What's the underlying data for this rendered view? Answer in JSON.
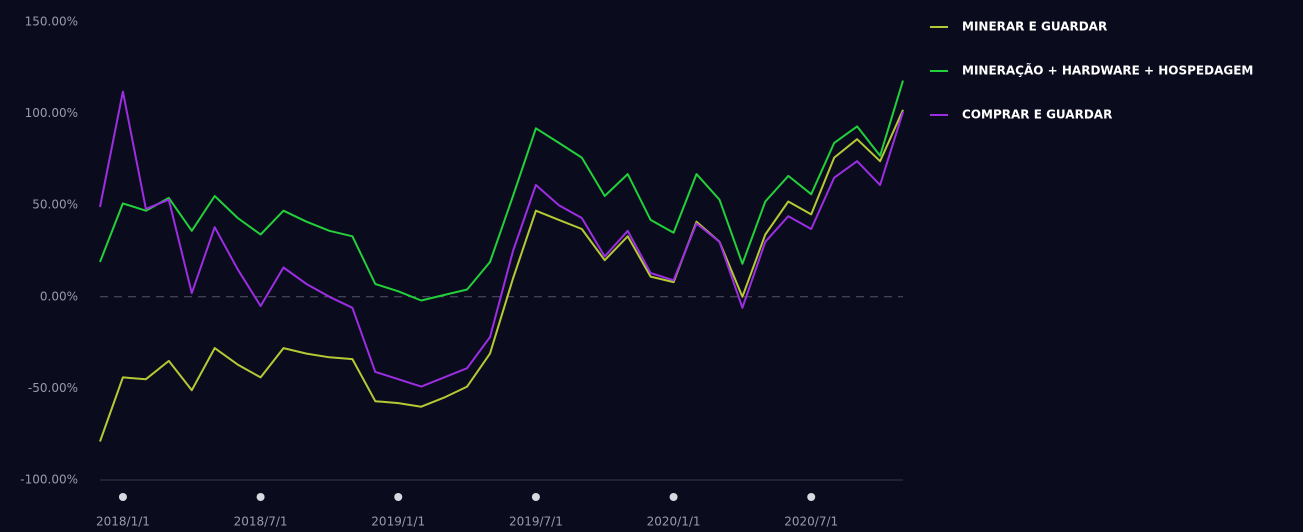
{
  "chart_data": {
    "type": "line",
    "categories": [
      null,
      "2018/1/1",
      null,
      null,
      null,
      null,
      null,
      "2018/7/1",
      null,
      null,
      null,
      null,
      null,
      "2019/1/1",
      null,
      null,
      null,
      null,
      null,
      "2019/7/1",
      null,
      null,
      null,
      null,
      null,
      "2020/1/1",
      null,
      null,
      null,
      null,
      null,
      "2020/7/1",
      null,
      null,
      null,
      null
    ],
    "series": [
      {
        "name": "MINERAR E GUARDAR",
        "color": "#b5c934",
        "values": [
          -79,
          -44,
          -45,
          -35,
          -51,
          -28,
          -37,
          -44,
          -28,
          -31,
          -33,
          -34,
          -57,
          -58,
          -60,
          -55,
          -49,
          -31,
          10,
          47,
          42,
          37,
          20,
          33,
          11,
          8,
          41,
          30,
          0,
          34,
          52,
          45,
          76,
          86,
          74,
          102
        ]
      },
      {
        "name": "MINERAÇÃO + HARDWARE + HOSPEDAGEM",
        "color": "#22d03a",
        "values": [
          19,
          51,
          47,
          54,
          36,
          55,
          43,
          34,
          47,
          41,
          36,
          33,
          7,
          3,
          -2,
          1,
          4,
          19,
          55,
          92,
          84,
          76,
          55,
          67,
          42,
          35,
          67,
          53,
          18,
          52,
          66,
          56,
          84,
          93,
          77,
          118
        ]
      },
      {
        "name": "COMPRAR E GUARDAR",
        "color": "#9b2ee0",
        "values": [
          49,
          112,
          48,
          53,
          2,
          38,
          15,
          -5,
          16,
          7,
          0,
          -6,
          -41,
          -45,
          -49,
          -44,
          -39,
          -22,
          25,
          61,
          50,
          43,
          22,
          36,
          13,
          9,
          40,
          30,
          -6,
          30,
          44,
          37,
          65,
          74,
          61,
          101
        ]
      }
    ],
    "ylim": [
      -100,
      150
    ],
    "yticks": [
      {
        "value": -100,
        "label": "-100.00%"
      },
      {
        "value": -50,
        "label": "-50.00%"
      },
      {
        "value": 0,
        "label": "0.00%"
      },
      {
        "value": 50,
        "label": "50.00%"
      },
      {
        "value": 100,
        "label": "100.00%"
      },
      {
        "value": 150,
        "label": "150.00%"
      }
    ]
  }
}
